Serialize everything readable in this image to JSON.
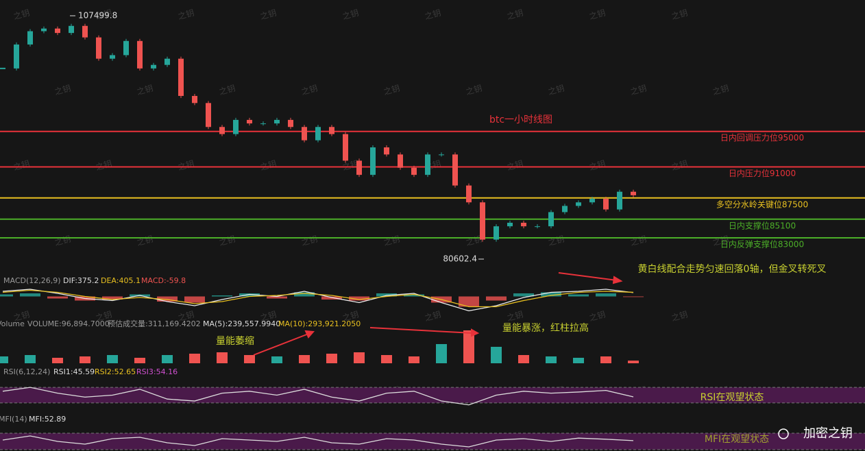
{
  "chart_data": {
    "type": "candlestick",
    "title": "btc一小时线图",
    "watermark": "之钥",
    "brand": "加密之钥",
    "up_color": "#26a69a",
    "down_color": "#ef5350",
    "high": {
      "value": 107499.8,
      "label": "107499.8"
    },
    "low": {
      "value": 80602.4,
      "label": "80602.4"
    },
    "closes": [
      102100,
      104800,
      106300,
      106600,
      106100,
      106900,
      105600,
      103200,
      103600,
      105200,
      102100,
      102500,
      103200,
      99000,
      98200,
      95500,
      94700,
      96300,
      95900,
      95900,
      96300,
      95500,
      94000,
      95500,
      94700,
      91700,
      90100,
      93200,
      92400,
      90900,
      90100,
      92400,
      92400,
      88900,
      87000,
      82800,
      84300,
      84700,
      84300,
      84300,
      85900,
      86600,
      87000,
      87400,
      86200,
      88200,
      87800
    ],
    "levels": [
      {
        "label": "日内回调压力位95000",
        "value": 95000,
        "color": "#e8323a"
      },
      {
        "label": "日内压力位91000",
        "value": 91000,
        "color": "#e8323a"
      },
      {
        "label": "多空分水岭关键位87500",
        "value": 87500,
        "color": "#e8c020"
      },
      {
        "label": "日内支撑位85100",
        "value": 85100,
        "color": "#4caf28"
      },
      {
        "label": "日内反弹支撑位83000",
        "value": 83000,
        "color": "#4caf28"
      }
    ],
    "annotations": [
      "黄白线配合走势匀速回落0轴，但金叉转死叉",
      "量能萎缩",
      "量能暴涨，红柱拉高",
      "RSI在观望状态",
      "MFI在观望状态"
    ],
    "macd": {
      "header": [
        "MACD(12,26,9)",
        "DIF:375.2",
        "DEA:405.1",
        "MACD:-59.8"
      ],
      "ylim": [
        -1500,
        1500
      ],
      "hist": [
        200,
        300,
        -200,
        -400,
        -300,
        200,
        -500,
        -600,
        100,
        300,
        -200,
        400,
        -300,
        -400,
        300,
        200,
        -600,
        -1000,
        -400,
        300,
        400,
        200,
        300,
        -60
      ],
      "dif": [
        500,
        700,
        300,
        -200,
        -400,
        100,
        -500,
        -900,
        -300,
        200,
        0,
        500,
        -100,
        -600,
        100,
        300,
        -600,
        -1400,
        -900,
        -100,
        400,
        500,
        700,
        375.2
      ],
      "dea": [
        400,
        600,
        400,
        0,
        -300,
        -100,
        -300,
        -700,
        -500,
        0,
        100,
        300,
        100,
        -300,
        0,
        200,
        -300,
        -1000,
        -1000,
        -400,
        100,
        400,
        500,
        405.1
      ]
    },
    "volume": {
      "header": [
        "Volume",
        "VOLUME:96,894.7000",
        "预估成交量:311,169.4202",
        "MA(5):239,557.9940",
        "MA(10):293,921.2050"
      ],
      "ylim": [
        0,
        1500000
      ],
      "values": [
        250000,
        300000,
        200000,
        250000,
        300000,
        200000,
        300000,
        350000,
        400000,
        300000,
        250000,
        300000,
        350000,
        400000,
        300000,
        250000,
        700000,
        1200000,
        600000,
        300000,
        250000,
        200000,
        250000,
        96894.7
      ]
    },
    "rsi": {
      "header": [
        "RSI(6,12,24)",
        "RSI1:45.59",
        "RSI2:52.65",
        "RSI3:54.16"
      ],
      "band": [
        30,
        70
      ],
      "values": [
        60,
        70,
        55,
        45,
        50,
        65,
        40,
        35,
        55,
        60,
        50,
        65,
        45,
        35,
        55,
        60,
        35,
        25,
        50,
        60,
        55,
        58,
        62,
        45.59
      ]
    },
    "mfi": {
      "header": [
        "MFI(14)",
        "MFI:52.89"
      ],
      "band": [
        20,
        80
      ],
      "values": [
        55,
        70,
        50,
        40,
        60,
        65,
        45,
        35,
        60,
        55,
        50,
        65,
        45,
        40,
        60,
        55,
        40,
        30,
        55,
        60,
        50,
        62,
        58,
        52.89
      ]
    }
  }
}
